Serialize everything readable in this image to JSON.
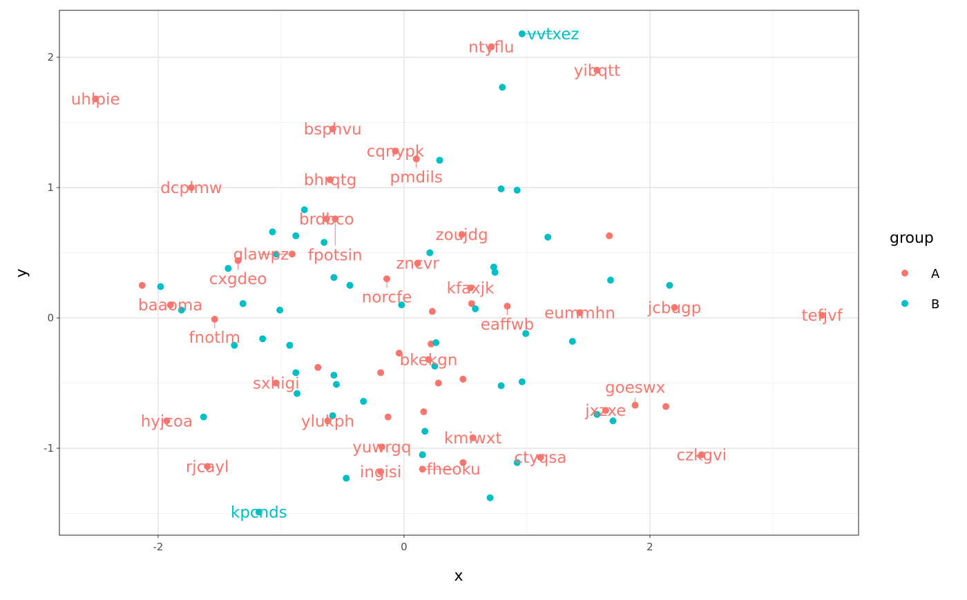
{
  "chart_data": {
    "type": "scatter",
    "title": "",
    "xlabel": "x",
    "ylabel": "y",
    "xlim": [
      -2.803,
      3.697
    ],
    "ylim": [
      -1.667,
      2.36
    ],
    "xticks": [
      -2,
      0,
      2
    ],
    "yticks": [
      2,
      1,
      0,
      -1
    ],
    "xtick_labels": [
      "-2",
      "0",
      "2"
    ],
    "ytick_labels": [
      "2",
      "1",
      "0",
      "-1"
    ],
    "grid": true,
    "legend": {
      "title": "group",
      "placement": "right",
      "entries": [
        "A",
        "B"
      ]
    },
    "colors": {
      "A": "#F8766D",
      "B": "#00BFC4"
    },
    "points": [
      {
        "x": -2.51,
        "y": 1.68,
        "group": "A",
        "label": "uhlpie"
      },
      {
        "x": 0.71,
        "y": 2.08,
        "group": "A",
        "label": "ntyflu"
      },
      {
        "x": 1.57,
        "y": 1.9,
        "group": "A",
        "label": "yibqtt"
      },
      {
        "x": -0.58,
        "y": 1.45,
        "group": "A",
        "label": "bsphvu"
      },
      {
        "x": -0.07,
        "y": 1.28,
        "group": "A",
        "label": "cqnypk"
      },
      {
        "x": 0.1,
        "y": 1.22,
        "group": "A",
        "label": "pmdils"
      },
      {
        "x": -0.6,
        "y": 1.06,
        "group": "A",
        "label": "bhrqtg"
      },
      {
        "x": -1.73,
        "y": 1.0,
        "group": "A",
        "label": "dcplmw"
      },
      {
        "x": -0.63,
        "y": 0.76,
        "group": "A",
        "label": "brdbco"
      },
      {
        "x": -0.56,
        "y": 0.76,
        "group": "A",
        "label": "fpotsin"
      },
      {
        "x": 0.47,
        "y": 0.64,
        "group": "A",
        "label": "zoujdg"
      },
      {
        "x": -0.91,
        "y": 0.49,
        "group": "A",
        "label": "glawpz"
      },
      {
        "x": -1.35,
        "y": 0.44,
        "group": "A",
        "label": "cxgdeo"
      },
      {
        "x": 0.11,
        "y": 0.42,
        "group": "A",
        "label": "zncvr"
      },
      {
        "x": -0.14,
        "y": 0.3,
        "group": "A",
        "label": "norcfe"
      },
      {
        "x": 0.54,
        "y": 0.23,
        "group": "A",
        "label": "kfaxjk"
      },
      {
        "x": -1.9,
        "y": 0.1,
        "group": "A",
        "label": "baaoma"
      },
      {
        "x": 0.84,
        "y": 0.09,
        "group": "A",
        "label": "eaffwb"
      },
      {
        "x": 1.43,
        "y": 0.04,
        "group": "A",
        "label": "eummhn"
      },
      {
        "x": 2.2,
        "y": 0.08,
        "group": "A",
        "label": "jcbugp"
      },
      {
        "x": 3.4,
        "y": 0.02,
        "group": "A",
        "label": "tefjvf"
      },
      {
        "x": -1.54,
        "y": -0.01,
        "group": "A",
        "label": "fnotlm"
      },
      {
        "x": 0.2,
        "y": -0.32,
        "group": "A",
        "label": "bkekgn"
      },
      {
        "x": -1.04,
        "y": -0.5,
        "group": "A",
        "label": "sxhigi"
      },
      {
        "x": -1.93,
        "y": -0.79,
        "group": "A",
        "label": "hyjcoa"
      },
      {
        "x": -0.62,
        "y": -0.79,
        "group": "A",
        "label": "ylukph"
      },
      {
        "x": 1.64,
        "y": -0.71,
        "group": "A",
        "label": "jxzxe"
      },
      {
        "x": 1.88,
        "y": -0.67,
        "group": "A",
        "label": "goeswx"
      },
      {
        "x": 0.56,
        "y": -0.92,
        "group": "A",
        "label": "kmiwxt"
      },
      {
        "x": -0.18,
        "y": -0.99,
        "group": "A",
        "label": "yuwrgq"
      },
      {
        "x": 1.11,
        "y": -1.07,
        "group": "A",
        "label": "ctyqsa"
      },
      {
        "x": 2.42,
        "y": -1.05,
        "group": "A",
        "label": "czkgvi"
      },
      {
        "x": -1.6,
        "y": -1.14,
        "group": "A",
        "label": "rjcayl"
      },
      {
        "x": -0.19,
        "y": -1.18,
        "group": "A",
        "label": "ingisi"
      },
      {
        "x": 0.15,
        "y": -1.16,
        "group": "A",
        "label": "fheoku"
      },
      {
        "x": -2.13,
        "y": 0.25,
        "group": "A",
        "label": ""
      },
      {
        "x": 1.67,
        "y": 0.63,
        "group": "A",
        "label": ""
      },
      {
        "x": 0.23,
        "y": 0.05,
        "group": "A",
        "label": ""
      },
      {
        "x": 0.22,
        "y": -0.2,
        "group": "A",
        "label": ""
      },
      {
        "x": -0.04,
        "y": -0.27,
        "group": "A",
        "label": ""
      },
      {
        "x": -0.7,
        "y": -0.38,
        "group": "A",
        "label": ""
      },
      {
        "x": -0.19,
        "y": -0.42,
        "group": "A",
        "label": ""
      },
      {
        "x": 0.28,
        "y": -0.5,
        "group": "A",
        "label": ""
      },
      {
        "x": 0.48,
        "y": -0.47,
        "group": "A",
        "label": ""
      },
      {
        "x": -0.13,
        "y": -0.76,
        "group": "A",
        "label": ""
      },
      {
        "x": 0.16,
        "y": -0.72,
        "group": "A",
        "label": ""
      },
      {
        "x": 0.48,
        "y": -1.11,
        "group": "A",
        "label": ""
      },
      {
        "x": 2.13,
        "y": -0.68,
        "group": "A",
        "label": ""
      },
      {
        "x": 0.55,
        "y": 0.11,
        "group": "A",
        "label": ""
      },
      {
        "x": 0.96,
        "y": 2.18,
        "group": "B",
        "label": "vvtxez"
      },
      {
        "x": -1.18,
        "y": -1.49,
        "group": "B",
        "label": "kpcnds"
      },
      {
        "x": 0.8,
        "y": 1.77,
        "group": "B",
        "label": ""
      },
      {
        "x": 0.29,
        "y": 1.21,
        "group": "B",
        "label": ""
      },
      {
        "x": 0.79,
        "y": 0.99,
        "group": "B",
        "label": ""
      },
      {
        "x": 0.92,
        "y": 0.98,
        "group": "B",
        "label": ""
      },
      {
        "x": 1.17,
        "y": 0.62,
        "group": "B",
        "label": ""
      },
      {
        "x": -0.81,
        "y": 0.83,
        "group": "B",
        "label": ""
      },
      {
        "x": -1.07,
        "y": 0.66,
        "group": "B",
        "label": ""
      },
      {
        "x": -0.88,
        "y": 0.63,
        "group": "B",
        "label": ""
      },
      {
        "x": -0.65,
        "y": 0.58,
        "group": "B",
        "label": ""
      },
      {
        "x": -1.04,
        "y": 0.49,
        "group": "B",
        "label": ""
      },
      {
        "x": -1.43,
        "y": 0.38,
        "group": "B",
        "label": ""
      },
      {
        "x": -0.57,
        "y": 0.31,
        "group": "B",
        "label": ""
      },
      {
        "x": -0.44,
        "y": 0.25,
        "group": "B",
        "label": ""
      },
      {
        "x": 0.21,
        "y": 0.5,
        "group": "B",
        "label": ""
      },
      {
        "x": 0.73,
        "y": 0.39,
        "group": "B",
        "label": ""
      },
      {
        "x": 0.74,
        "y": 0.35,
        "group": "B",
        "label": ""
      },
      {
        "x": 1.68,
        "y": 0.29,
        "group": "B",
        "label": ""
      },
      {
        "x": 2.16,
        "y": 0.25,
        "group": "B",
        "label": ""
      },
      {
        "x": -1.98,
        "y": 0.24,
        "group": "B",
        "label": ""
      },
      {
        "x": -1.31,
        "y": 0.11,
        "group": "B",
        "label": ""
      },
      {
        "x": -0.02,
        "y": 0.1,
        "group": "B",
        "label": ""
      },
      {
        "x": -1.81,
        "y": 0.06,
        "group": "B",
        "label": ""
      },
      {
        "x": -1.01,
        "y": 0.06,
        "group": "B",
        "label": ""
      },
      {
        "x": 0.58,
        "y": 0.07,
        "group": "B",
        "label": ""
      },
      {
        "x": 0.99,
        "y": -0.12,
        "group": "B",
        "label": ""
      },
      {
        "x": 1.37,
        "y": -0.18,
        "group": "B",
        "label": ""
      },
      {
        "x": -1.15,
        "y": -0.16,
        "group": "B",
        "label": ""
      },
      {
        "x": -1.38,
        "y": -0.21,
        "group": "B",
        "label": ""
      },
      {
        "x": -0.93,
        "y": -0.21,
        "group": "B",
        "label": ""
      },
      {
        "x": 0.26,
        "y": -0.19,
        "group": "B",
        "label": ""
      },
      {
        "x": 0.25,
        "y": -0.37,
        "group": "B",
        "label": ""
      },
      {
        "x": -0.88,
        "y": -0.42,
        "group": "B",
        "label": ""
      },
      {
        "x": -0.57,
        "y": -0.44,
        "group": "B",
        "label": ""
      },
      {
        "x": -0.55,
        "y": -0.51,
        "group": "B",
        "label": ""
      },
      {
        "x": -0.87,
        "y": -0.58,
        "group": "B",
        "label": ""
      },
      {
        "x": 0.79,
        "y": -0.52,
        "group": "B",
        "label": ""
      },
      {
        "x": 0.96,
        "y": -0.49,
        "group": "B",
        "label": ""
      },
      {
        "x": -0.33,
        "y": -0.64,
        "group": "B",
        "label": ""
      },
      {
        "x": -1.63,
        "y": -0.76,
        "group": "B",
        "label": ""
      },
      {
        "x": -0.58,
        "y": -0.75,
        "group": "B",
        "label": ""
      },
      {
        "x": 1.57,
        "y": -0.74,
        "group": "B",
        "label": ""
      },
      {
        "x": 1.7,
        "y": -0.79,
        "group": "B",
        "label": ""
      },
      {
        "x": 0.17,
        "y": -0.87,
        "group": "B",
        "label": ""
      },
      {
        "x": 0.15,
        "y": -1.05,
        "group": "B",
        "label": ""
      },
      {
        "x": 0.92,
        "y": -1.11,
        "group": "B",
        "label": ""
      },
      {
        "x": -0.47,
        "y": -1.23,
        "group": "B",
        "label": ""
      },
      {
        "x": 0.7,
        "y": -1.38,
        "group": "B",
        "label": ""
      }
    ]
  }
}
